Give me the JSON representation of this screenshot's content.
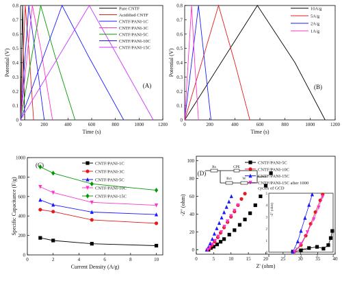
{
  "chart_data": [
    {
      "panel": "(A)",
      "type": "line",
      "xlabel": "Time (s)",
      "ylabel": "Potential (V)",
      "xlim": [
        0,
        1200
      ],
      "ylim": [
        0,
        0.8
      ],
      "xticks": [
        0,
        200,
        400,
        600,
        800,
        1000,
        1200
      ],
      "yticks": [
        0.0,
        0.1,
        0.2,
        0.3,
        0.4,
        0.5,
        0.6,
        0.7,
        0.8
      ],
      "legend": "top-left",
      "series": [
        {
          "name": "Pure CNTF",
          "color": "#000000",
          "x": [
            0,
            18,
            25,
            35
          ],
          "y": [
            0,
            0.8,
            0.45,
            0
          ]
        },
        {
          "name": "Acidified CNTF",
          "color": "#e41a1c",
          "x": [
            0,
            40,
            70,
            110
          ],
          "y": [
            0,
            0.8,
            0.5,
            0
          ]
        },
        {
          "name": "CNTF/PANI-1C",
          "color": "#1a1aff",
          "x": [
            0,
            70,
            120,
            200
          ],
          "y": [
            0,
            0.8,
            0.5,
            0
          ]
        },
        {
          "name": "CNTF/PANI-3C",
          "color": "#ff33cc",
          "x": [
            0,
            100,
            170,
            270
          ],
          "y": [
            0,
            0.8,
            0.5,
            0
          ]
        },
        {
          "name": "CNTF/PANI-5C",
          "color": "#009900",
          "x": [
            0,
            170,
            290,
            460
          ],
          "y": [
            0,
            0.8,
            0.45,
            0
          ]
        },
        {
          "name": "CNTF/PANI-10C",
          "color": "#1a1aff",
          "x": [
            0,
            350,
            570,
            870
          ],
          "y": [
            0,
            0.8,
            0.45,
            0
          ]
        },
        {
          "name": "CNTF/PANI-15C",
          "color": "#cc33ff",
          "x": [
            0,
            580,
            850,
            1120
          ],
          "y": [
            0,
            0.8,
            0.4,
            0
          ]
        }
      ]
    },
    {
      "panel": "(B)",
      "type": "line",
      "xlabel": "Time (s)",
      "ylabel": "Potential (V)",
      "xlim": [
        0,
        1200
      ],
      "ylim": [
        0,
        0.8
      ],
      "xticks": [
        0,
        200,
        400,
        600,
        800,
        1000,
        1200
      ],
      "yticks": [
        0.0,
        0.1,
        0.2,
        0.3,
        0.4,
        0.5,
        0.6,
        0.7,
        0.8
      ],
      "legend": "top-right",
      "series": [
        {
          "name": "10A/g",
          "color": "#000000",
          "x": [
            0,
            580,
            880,
            1120
          ],
          "y": [
            0,
            0.8,
            0.4,
            0
          ]
        },
        {
          "name": "5A/g",
          "color": "#e41a1c",
          "x": [
            0,
            270,
            400,
            520
          ],
          "y": [
            0,
            0.8,
            0.4,
            0
          ]
        },
        {
          "name": "2A/g",
          "color": "#1a1aff",
          "x": [
            0,
            110,
            160,
            210
          ],
          "y": [
            0,
            0.8,
            0.4,
            0
          ]
        },
        {
          "name": "1A/g",
          "color": "#ff33cc",
          "x": [
            0,
            55,
            80,
            110
          ],
          "y": [
            0,
            0.8,
            0.4,
            0
          ]
        }
      ]
    },
    {
      "panel": "(C)",
      "type": "line",
      "xlabel": "Current Density (A/g)",
      "ylabel": "Specific Capacitance (F/g)",
      "xlim": [
        0,
        10.5
      ],
      "ylim": [
        0,
        1000
      ],
      "xticks": [
        0,
        2,
        4,
        6,
        8,
        10
      ],
      "yticks": [
        0,
        200,
        400,
        600,
        800,
        1000
      ],
      "legend": "top-right",
      "x": [
        1,
        2,
        5,
        10
      ],
      "series": [
        {
          "name": "CNTF/PANI-1C",
          "color": "#000000",
          "marker": "square",
          "values": [
            175,
            148,
            115,
            95
          ]
        },
        {
          "name": "CNTF/PANI-3C",
          "color": "#e41a1c",
          "marker": "circle",
          "values": [
            465,
            445,
            360,
            325
          ]
        },
        {
          "name": "CNTF/PANI-5C",
          "color": "#1a1aff",
          "marker": "triangle-up",
          "values": [
            565,
            515,
            440,
            415
          ]
        },
        {
          "name": "CNTF/PANI-10C",
          "color": "#ff33cc",
          "marker": "triangle-down",
          "values": [
            700,
            640,
            540,
            510
          ]
        },
        {
          "name": "CNTF/PANI-15C",
          "color": "#009900",
          "marker": "diamond",
          "values": [
            905,
            840,
            730,
            665
          ]
        }
      ]
    },
    {
      "panel": "(D)",
      "type": "scatter",
      "xlabel": "Z' (ohm)",
      "ylabel": "-Z'' (ohm)",
      "xlim": [
        0,
        40
      ],
      "ylim": [
        -5,
        105
      ],
      "xticks": [
        0,
        5,
        10,
        15,
        20,
        25,
        30,
        35,
        40
      ],
      "yticks": [
        0,
        20,
        40,
        60,
        80,
        100
      ],
      "legend": "top-right",
      "circuit_labels": [
        "Rs",
        "CPE",
        "Rct",
        "W"
      ],
      "series": [
        {
          "name": "CNTF/PANI-5C",
          "color": "#000000",
          "marker": "square",
          "x": [
            3.5,
            4.2,
            5,
            6,
            7,
            8,
            9.5,
            11,
            12.5,
            14,
            15.5,
            17,
            18.5,
            20,
            21.5
          ],
          "y": [
            0,
            2,
            3.5,
            6,
            9,
            12,
            17,
            22,
            28,
            34,
            41,
            50,
            60,
            72,
            86
          ]
        },
        {
          "name": "CNTF/PANI-10C",
          "color": "#e41a1c",
          "marker": "circle",
          "x": [
            3.2,
            3.8,
            4.5,
            5.3,
            6.2,
            7,
            8,
            9,
            10,
            11,
            12,
            13,
            14
          ],
          "y": [
            0,
            2,
            5,
            9,
            14,
            19,
            25,
            31,
            37,
            43,
            50,
            57,
            63
          ]
        },
        {
          "name": "CNTF/PANI-15C",
          "color": "#1a1aff",
          "marker": "triangle-up",
          "x": [
            3,
            3.5,
            4,
            4.6,
            5.2,
            5.9,
            6.6,
            7.3,
            8,
            8.7,
            9.4,
            10.1
          ],
          "y": [
            0,
            3,
            7,
            12,
            18,
            24,
            30,
            36,
            42,
            48,
            54,
            60
          ]
        },
        {
          "name": "CNTF/PANI-15C after 1000 cycles of GCD",
          "color": "#ff33cc",
          "marker": "triangle-down",
          "x": [
            3.3,
            3.9,
            4.6,
            5.4,
            6.3,
            7.2,
            8.1,
            9,
            10,
            11,
            12
          ],
          "y": [
            0,
            2.5,
            6,
            10,
            15,
            20,
            26,
            32,
            38,
            44,
            50
          ]
        }
      ],
      "inset": {
        "xticks": [
          0,
          1,
          2,
          3,
          4
        ],
        "yticks": [
          0,
          1,
          2,
          3,
          4,
          5
        ],
        "xlabel": "Z' (ohm)",
        "ylabel": "-Z'' (ohm)"
      }
    }
  ]
}
